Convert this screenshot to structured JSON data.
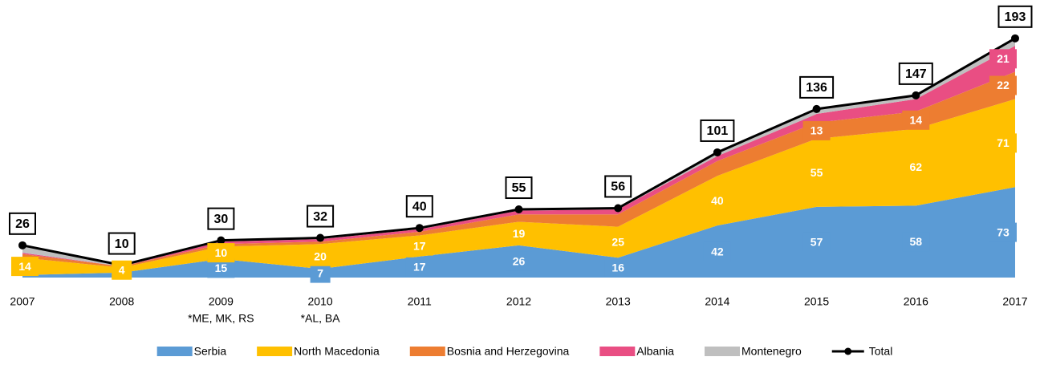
{
  "chart_data": {
    "type": "stacked-area",
    "categories": [
      "2007",
      "2008",
      "2009",
      "2010",
      "2011",
      "2012",
      "2013",
      "2014",
      "2015",
      "2016",
      "2017"
    ],
    "annotations": [
      {
        "category": 2,
        "text": "*ME, MK, RS"
      },
      {
        "category": 3,
        "text": "*AL, BA"
      }
    ],
    "ylim": [
      0,
      200
    ],
    "series": [
      {
        "name": "Serbia",
        "color": "#5b9bd5",
        "values": [
          2,
          4,
          15,
          7,
          17,
          26,
          16,
          42,
          57,
          58,
          73
        ],
        "value_labels": [
          null,
          null,
          "15",
          "7",
          "17",
          "26",
          "16",
          "42",
          "57",
          "58",
          "73"
        ]
      },
      {
        "name": "North Macedonia",
        "color": "#ffc000",
        "values": [
          14,
          4,
          10,
          20,
          17,
          19,
          25,
          40,
          55,
          62,
          71
        ],
        "value_labels": [
          "14",
          "4",
          "10",
          "20",
          "17",
          "19",
          "25",
          "40",
          "55",
          "62",
          "71"
        ]
      },
      {
        "name": "Bosnia and Herzegovina",
        "color": "#ed7d31",
        "values": [
          3,
          1,
          2,
          2,
          3,
          6,
          10,
          12,
          13,
          14,
          22
        ],
        "value_labels": [
          null,
          null,
          null,
          null,
          null,
          null,
          null,
          null,
          "13",
          "14",
          "22"
        ]
      },
      {
        "name": "Albania",
        "color": "#e94e83",
        "values": [
          1,
          0,
          2,
          2,
          2,
          3,
          4,
          4,
          7,
          10,
          21
        ],
        "value_labels": [
          null,
          null,
          null,
          null,
          null,
          null,
          null,
          null,
          null,
          null,
          "21"
        ]
      },
      {
        "name": "Montenegro",
        "color": "#bfbfbf",
        "values": [
          6,
          1,
          1,
          1,
          1,
          1,
          1,
          3,
          4,
          3,
          6
        ]
      }
    ],
    "total": {
      "name": "Total",
      "color": "#000000",
      "values": [
        26,
        10,
        30,
        32,
        40,
        55,
        56,
        101,
        136,
        147,
        193
      ],
      "value_labels": [
        "26",
        "10",
        "30",
        "32",
        "40",
        "55",
        "56",
        "101",
        "136",
        "147",
        "193"
      ]
    }
  }
}
